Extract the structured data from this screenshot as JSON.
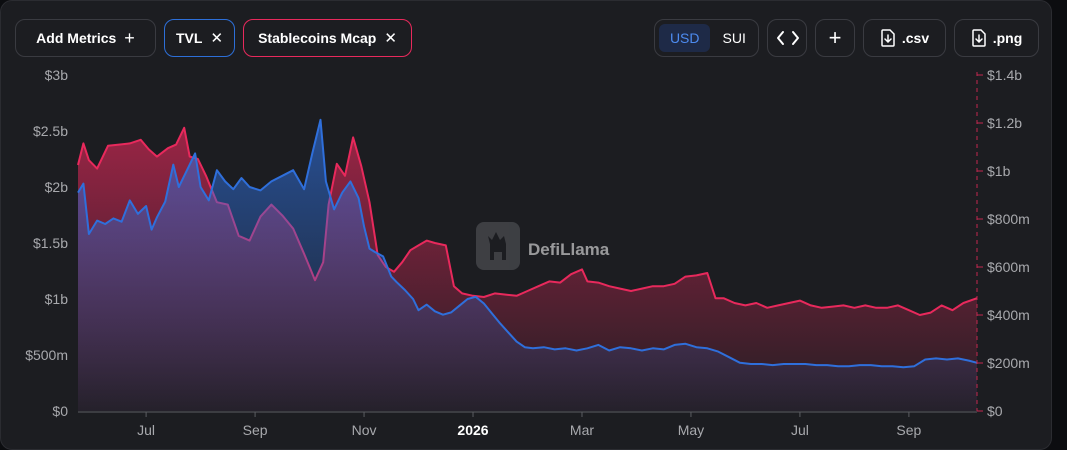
{
  "toolbar": {
    "add_metrics": "Add Metrics",
    "add_icon": "+",
    "metric_tvl": "TVL",
    "metric_stable": "Stablecoins Mcap",
    "remove_icon": "✕",
    "currency_usd": "USD",
    "currency_sui": "SUI",
    "embed_icon": "<>",
    "plus_icon": "+",
    "csv_label": ".csv",
    "png_label": ".png"
  },
  "watermark": "DefiLlama",
  "chart_data": {
    "type": "area",
    "colors": {
      "tvl": "#2f6fdb",
      "stablecoins": "#e8295c"
    },
    "x_ticks": [
      "Jul",
      "Sep",
      "Nov",
      "2026",
      "Mar",
      "May",
      "Jul",
      "Sep"
    ],
    "x_tick_months": [
      3,
      5,
      7,
      9,
      11,
      13,
      15,
      17
    ],
    "x_tick_bold": [
      false,
      false,
      false,
      true,
      false,
      false,
      false,
      false
    ],
    "x_range_months": [
      1.75,
      18.25
    ],
    "y_left": {
      "ticks": [
        "$0",
        "$500m",
        "$1b",
        "$1.5b",
        "$2b",
        "$2.5b",
        "$3b"
      ],
      "values": [
        0,
        500,
        1000,
        1500,
        2000,
        2500,
        3000
      ],
      "range": [
        0,
        3000
      ],
      "unit": "m"
    },
    "y_right": {
      "ticks": [
        "$0",
        "$200m",
        "$400m",
        "$600m",
        "$800m",
        "$1b",
        "$1.2b",
        "$1.4b"
      ],
      "values": [
        0,
        200,
        400,
        600,
        800,
        1000,
        1200,
        1400
      ],
      "range": [
        0,
        1400
      ],
      "unit": "m"
    },
    "grid": false,
    "legend": "none",
    "series": [
      {
        "name": "TVL",
        "axis": "left",
        "points": [
          [
            1.75,
            1950
          ],
          [
            1.85,
            2030
          ],
          [
            1.95,
            1580
          ],
          [
            2.1,
            1700
          ],
          [
            2.25,
            1670
          ],
          [
            2.4,
            1720
          ],
          [
            2.55,
            1690
          ],
          [
            2.7,
            1880
          ],
          [
            2.85,
            1760
          ],
          [
            3.0,
            1830
          ],
          [
            3.1,
            1620
          ],
          [
            3.2,
            1730
          ],
          [
            3.35,
            1870
          ],
          [
            3.5,
            2200
          ],
          [
            3.6,
            2000
          ],
          [
            3.75,
            2150
          ],
          [
            3.9,
            2300
          ],
          [
            4.0,
            2000
          ],
          [
            4.15,
            1880
          ],
          [
            4.3,
            2150
          ],
          [
            4.45,
            2050
          ],
          [
            4.6,
            1980
          ],
          [
            4.75,
            2080
          ],
          [
            4.9,
            2000
          ],
          [
            5.1,
            1970
          ],
          [
            5.3,
            2050
          ],
          [
            5.5,
            2100
          ],
          [
            5.7,
            2150
          ],
          [
            5.9,
            1980
          ],
          [
            6.05,
            2300
          ],
          [
            6.2,
            2600
          ],
          [
            6.3,
            2050
          ],
          [
            6.45,
            1800
          ],
          [
            6.6,
            1950
          ],
          [
            6.75,
            2050
          ],
          [
            6.9,
            1900
          ],
          [
            7.0,
            1650
          ],
          [
            7.1,
            1450
          ],
          [
            7.2,
            1420
          ],
          [
            7.35,
            1380
          ],
          [
            7.5,
            1200
          ],
          [
            7.6,
            1150
          ],
          [
            7.75,
            1080
          ],
          [
            7.9,
            1000
          ],
          [
            8.0,
            900
          ],
          [
            8.15,
            950
          ],
          [
            8.3,
            890
          ],
          [
            8.45,
            860
          ],
          [
            8.6,
            880
          ],
          [
            8.75,
            940
          ],
          [
            8.9,
            1000
          ],
          [
            9.05,
            1020
          ],
          [
            9.2,
            960
          ],
          [
            9.35,
            870
          ],
          [
            9.5,
            780
          ],
          [
            9.65,
            700
          ],
          [
            9.8,
            620
          ],
          [
            9.95,
            570
          ],
          [
            10.1,
            560
          ],
          [
            10.3,
            570
          ],
          [
            10.5,
            550
          ],
          [
            10.7,
            560
          ],
          [
            10.9,
            540
          ],
          [
            11.1,
            560
          ],
          [
            11.3,
            590
          ],
          [
            11.5,
            540
          ],
          [
            11.7,
            570
          ],
          [
            11.9,
            560
          ],
          [
            12.1,
            540
          ],
          [
            12.3,
            560
          ],
          [
            12.5,
            550
          ],
          [
            12.7,
            590
          ],
          [
            12.9,
            600
          ],
          [
            13.1,
            570
          ],
          [
            13.3,
            560
          ],
          [
            13.5,
            530
          ],
          [
            13.7,
            480
          ],
          [
            13.9,
            430
          ],
          [
            14.1,
            420
          ],
          [
            14.3,
            420
          ],
          [
            14.5,
            410
          ],
          [
            14.7,
            420
          ],
          [
            14.9,
            420
          ],
          [
            15.1,
            420
          ],
          [
            15.3,
            410
          ],
          [
            15.5,
            410
          ],
          [
            15.7,
            400
          ],
          [
            15.9,
            400
          ],
          [
            16.1,
            410
          ],
          [
            16.3,
            410
          ],
          [
            16.5,
            400
          ],
          [
            16.7,
            400
          ],
          [
            16.9,
            390
          ],
          [
            17.1,
            400
          ],
          [
            17.3,
            460
          ],
          [
            17.5,
            470
          ],
          [
            17.7,
            460
          ],
          [
            17.9,
            470
          ],
          [
            18.1,
            450
          ],
          [
            18.25,
            430
          ]
        ]
      },
      {
        "name": "Stablecoins Mcap",
        "axis": "right",
        "points": [
          [
            1.75,
            1025
          ],
          [
            1.85,
            1115
          ],
          [
            1.95,
            1045
          ],
          [
            2.1,
            1010
          ],
          [
            2.3,
            1105
          ],
          [
            2.5,
            1110
          ],
          [
            2.7,
            1115
          ],
          [
            2.9,
            1130
          ],
          [
            3.05,
            1090
          ],
          [
            3.2,
            1060
          ],
          [
            3.4,
            1095
          ],
          [
            3.55,
            1110
          ],
          [
            3.7,
            1180
          ],
          [
            3.8,
            1060
          ],
          [
            3.95,
            1050
          ],
          [
            4.1,
            980
          ],
          [
            4.3,
            870
          ],
          [
            4.5,
            860
          ],
          [
            4.7,
            730
          ],
          [
            4.9,
            710
          ],
          [
            5.1,
            810
          ],
          [
            5.3,
            860
          ],
          [
            5.5,
            815
          ],
          [
            5.7,
            760
          ],
          [
            5.9,
            655
          ],
          [
            6.0,
            600
          ],
          [
            6.1,
            545
          ],
          [
            6.25,
            620
          ],
          [
            6.35,
            860
          ],
          [
            6.5,
            1030
          ],
          [
            6.65,
            980
          ],
          [
            6.8,
            1140
          ],
          [
            6.95,
            1020
          ],
          [
            7.1,
            870
          ],
          [
            7.25,
            650
          ],
          [
            7.4,
            600
          ],
          [
            7.55,
            580
          ],
          [
            7.7,
            620
          ],
          [
            7.85,
            670
          ],
          [
            8.0,
            690
          ],
          [
            8.15,
            710
          ],
          [
            8.3,
            700
          ],
          [
            8.5,
            690
          ],
          [
            8.65,
            520
          ],
          [
            8.8,
            490
          ],
          [
            9.0,
            480
          ],
          [
            9.2,
            475
          ],
          [
            9.4,
            490
          ],
          [
            9.6,
            485
          ],
          [
            9.8,
            480
          ],
          [
            10.0,
            500
          ],
          [
            10.2,
            520
          ],
          [
            10.4,
            540
          ],
          [
            10.6,
            535
          ],
          [
            10.8,
            570
          ],
          [
            11.0,
            590
          ],
          [
            11.1,
            540
          ],
          [
            11.3,
            535
          ],
          [
            11.5,
            520
          ],
          [
            11.7,
            510
          ],
          [
            11.9,
            500
          ],
          [
            12.1,
            510
          ],
          [
            12.3,
            520
          ],
          [
            12.5,
            520
          ],
          [
            12.7,
            530
          ],
          [
            12.9,
            560
          ],
          [
            13.1,
            565
          ],
          [
            13.3,
            575
          ],
          [
            13.45,
            470
          ],
          [
            13.6,
            470
          ],
          [
            13.8,
            450
          ],
          [
            14.0,
            440
          ],
          [
            14.2,
            450
          ],
          [
            14.4,
            430
          ],
          [
            14.6,
            440
          ],
          [
            14.8,
            450
          ],
          [
            15.0,
            460
          ],
          [
            15.2,
            440
          ],
          [
            15.4,
            430
          ],
          [
            15.6,
            435
          ],
          [
            15.8,
            440
          ],
          [
            16.0,
            430
          ],
          [
            16.2,
            440
          ],
          [
            16.4,
            430
          ],
          [
            16.6,
            430
          ],
          [
            16.8,
            440
          ],
          [
            17.0,
            420
          ],
          [
            17.2,
            400
          ],
          [
            17.4,
            410
          ],
          [
            17.6,
            440
          ],
          [
            17.8,
            420
          ],
          [
            18.0,
            450
          ],
          [
            18.25,
            470
          ]
        ]
      }
    ]
  }
}
